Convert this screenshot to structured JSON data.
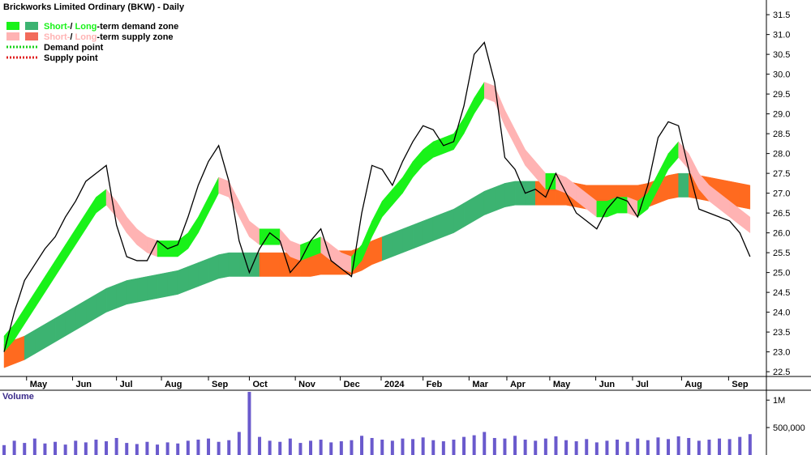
{
  "chart_data": {
    "type": "stock",
    "title": "Brickworks Limited Ordinary (BKW) - Daily",
    "legend": [
      {
        "parts": [
          "Short-",
          "/ ",
          "Long",
          "-term demand zone"
        ],
        "colors": [
          "#19f219",
          "#3cb371"
        ]
      },
      {
        "parts": [
          "Short-",
          "/ ",
          "Long",
          "-term supply zone"
        ],
        "colors": [
          "#ffb3b3",
          "#f26b5b"
        ]
      },
      {
        "parts": [
          "Demand point"
        ],
        "colors": [
          "#19d219"
        ],
        "dotted": true
      },
      {
        "parts": [
          "Supply point"
        ],
        "colors": [
          "#e02020"
        ],
        "dotted": true
      }
    ],
    "price_color": "#000000",
    "long_supply_color": "#ff6a1f",
    "xlim": [
      -0.4,
      74.6
    ],
    "xticks": [
      {
        "value": 2.2,
        "label": "May"
      },
      {
        "value": 6.7,
        "label": "Jun"
      },
      {
        "value": 11,
        "label": "Jul"
      },
      {
        "value": 15.4,
        "label": "Aug"
      },
      {
        "value": 20,
        "label": "Sep"
      },
      {
        "value": 24,
        "label": "Oct"
      },
      {
        "value": 28.5,
        "label": "Nov"
      },
      {
        "value": 32.9,
        "label": "Dec"
      },
      {
        "value": 36.9,
        "label": "2024"
      },
      {
        "value": 41,
        "label": "Feb"
      },
      {
        "value": 45.5,
        "label": "Mar"
      },
      {
        "value": 49.2,
        "label": "Apr"
      },
      {
        "value": 53.4,
        "label": "May"
      },
      {
        "value": 57.9,
        "label": "Jun"
      },
      {
        "value": 61.5,
        "label": "Jul"
      },
      {
        "value": 66.3,
        "label": "Aug"
      },
      {
        "value": 70.9,
        "label": "Sep"
      }
    ],
    "ylim": [
      22.38,
      31.87
    ],
    "yticks": [
      22.5,
      {
        "value": 23,
        "label": "23.0"
      },
      23.5,
      {
        "value": 24,
        "label": "24.0"
      },
      24.5,
      {
        "value": 25,
        "label": "25.0"
      },
      25.5,
      {
        "value": 26,
        "label": "26.0"
      },
      26.5,
      {
        "value": 27,
        "label": "27.0"
      },
      27.5,
      {
        "value": 28,
        "label": "28.0"
      },
      28.5,
      {
        "value": 29,
        "label": "29.0"
      },
      29.5,
      {
        "value": 30,
        "label": "30.0"
      },
      30.5,
      {
        "value": 31,
        "label": "31.0"
      },
      31.5
    ],
    "x": [
      0,
      1,
      2,
      3,
      4,
      5,
      6,
      7,
      8,
      9,
      10,
      11,
      12,
      13,
      14,
      15,
      16,
      17,
      18,
      19,
      20,
      21,
      22,
      23,
      24,
      25,
      26,
      27,
      28,
      29,
      30,
      31,
      32,
      33,
      34,
      35,
      36,
      37,
      38,
      39,
      40,
      41,
      42,
      43,
      44,
      45,
      46,
      47,
      48,
      49,
      50,
      51,
      52,
      53,
      54,
      55,
      56,
      57,
      58,
      59,
      60,
      61,
      62,
      63,
      64,
      65,
      66,
      67,
      68,
      69,
      70,
      71,
      72,
      73
    ],
    "close": [
      23.0,
      24.0,
      24.8,
      25.2,
      25.6,
      25.9,
      26.4,
      26.8,
      27.3,
      27.5,
      27.7,
      26.2,
      25.4,
      25.3,
      25.3,
      25.8,
      25.6,
      25.7,
      26.4,
      27.2,
      27.8,
      28.2,
      27.3,
      25.8,
      25.0,
      25.6,
      26.0,
      25.8,
      25.0,
      25.3,
      25.8,
      26.1,
      25.3,
      25.1,
      24.9,
      26.5,
      27.7,
      27.6,
      27.2,
      27.8,
      28.3,
      28.7,
      28.6,
      28.2,
      28.3,
      29.2,
      30.5,
      30.8,
      29.8,
      27.9,
      27.6,
      27.0,
      27.1,
      26.9,
      27.5,
      27.0,
      26.5,
      26.3,
      26.1,
      26.6,
      26.9,
      26.8,
      26.4,
      27.2,
      28.4,
      28.8,
      28.7,
      27.6,
      26.6,
      26.5,
      26.4,
      26.3,
      26.0,
      25.4
    ],
    "short_term_zone": {
      "upper": [
        23.4,
        23.7,
        24.1,
        24.5,
        24.9,
        25.3,
        25.7,
        26.1,
        26.5,
        26.9,
        27.1,
        26.8,
        26.4,
        26.1,
        25.9,
        25.8,
        25.8,
        25.8,
        26.0,
        26.4,
        26.9,
        27.4,
        27.3,
        26.8,
        26.3,
        26.1,
        26.1,
        26.1,
        25.8,
        25.7,
        25.8,
        25.9,
        25.7,
        25.5,
        25.4,
        25.7,
        26.3,
        26.8,
        27.1,
        27.4,
        27.8,
        28.1,
        28.3,
        28.4,
        28.5,
        28.9,
        29.4,
        29.8,
        29.7,
        29.1,
        28.6,
        28.1,
        27.8,
        27.5,
        27.5,
        27.4,
        27.2,
        27.0,
        26.8,
        26.8,
        26.9,
        26.9,
        26.8,
        27.0,
        27.5,
        28.0,
        28.3,
        28.0,
        27.5,
        27.2,
        27.0,
        26.8,
        26.6,
        26.4
      ],
      "lower": [
        23.0,
        23.3,
        23.7,
        24.1,
        24.5,
        24.9,
        25.3,
        25.7,
        26.1,
        26.5,
        26.7,
        26.4,
        26.0,
        25.7,
        25.5,
        25.4,
        25.4,
        25.4,
        25.6,
        26.0,
        26.5,
        27.0,
        26.9,
        26.4,
        25.9,
        25.7,
        25.7,
        25.7,
        25.4,
        25.3,
        25.4,
        25.5,
        25.3,
        25.1,
        25.0,
        25.3,
        25.9,
        26.4,
        26.7,
        27.0,
        27.4,
        27.7,
        27.9,
        28.0,
        28.1,
        28.5,
        29.0,
        29.4,
        29.3,
        28.7,
        28.2,
        27.7,
        27.4,
        27.1,
        27.1,
        27.0,
        26.8,
        26.6,
        26.4,
        26.4,
        26.5,
        26.5,
        26.4,
        26.6,
        27.1,
        27.6,
        27.9,
        27.6,
        27.1,
        26.8,
        26.6,
        26.4,
        26.2,
        26.0
      ]
    },
    "long_term_zone": {
      "upper": [
        23.2,
        23.3,
        23.4,
        23.55,
        23.7,
        23.85,
        24.0,
        24.15,
        24.3,
        24.45,
        24.6,
        24.7,
        24.8,
        24.85,
        24.9,
        24.95,
        25.0,
        25.05,
        25.15,
        25.25,
        25.35,
        25.45,
        25.5,
        25.5,
        25.5,
        25.5,
        25.5,
        25.5,
        25.5,
        25.5,
        25.5,
        25.55,
        25.55,
        25.55,
        25.55,
        25.65,
        25.8,
        25.9,
        26.0,
        26.1,
        26.2,
        26.3,
        26.4,
        26.5,
        26.6,
        26.75,
        26.9,
        27.05,
        27.15,
        27.25,
        27.3,
        27.3,
        27.3,
        27.3,
        27.3,
        27.3,
        27.25,
        27.2,
        27.2,
        27.2,
        27.2,
        27.2,
        27.2,
        27.25,
        27.35,
        27.45,
        27.5,
        27.5,
        27.45,
        27.4,
        27.35,
        27.3,
        27.25,
        27.2
      ],
      "lower": [
        22.6,
        22.7,
        22.8,
        22.95,
        23.1,
        23.25,
        23.4,
        23.55,
        23.7,
        23.85,
        24.0,
        24.1,
        24.2,
        24.25,
        24.3,
        24.35,
        24.4,
        24.45,
        24.55,
        24.65,
        24.75,
        24.85,
        24.9,
        24.9,
        24.9,
        24.9,
        24.9,
        24.9,
        24.9,
        24.9,
        24.9,
        24.95,
        24.95,
        24.95,
        24.95,
        25.05,
        25.2,
        25.3,
        25.4,
        25.5,
        25.6,
        25.7,
        25.8,
        25.9,
        26.0,
        26.15,
        26.3,
        26.45,
        26.55,
        26.65,
        26.7,
        26.7,
        26.7,
        26.7,
        26.7,
        26.7,
        26.65,
        26.6,
        26.6,
        26.6,
        26.6,
        26.6,
        26.6,
        26.65,
        26.75,
        26.85,
        26.9,
        26.9,
        26.85,
        26.8,
        26.75,
        26.7,
        26.65,
        26.6
      ]
    },
    "volume": {
      "label": "Volume",
      "color": "#6a5acd",
      "ylim": [
        0,
        1180000
      ],
      "yticks": [
        {
          "value": 500000,
          "label": "500,000"
        },
        {
          "value": 1000000,
          "label": "1M"
        }
      ],
      "values": [
        180000,
        260000,
        220000,
        300000,
        210000,
        240000,
        190000,
        260000,
        230000,
        280000,
        250000,
        310000,
        220000,
        200000,
        240000,
        190000,
        230000,
        210000,
        260000,
        280000,
        300000,
        240000,
        270000,
        420000,
        1150000,
        330000,
        260000,
        240000,
        300000,
        220000,
        260000,
        280000,
        230000,
        250000,
        270000,
        350000,
        310000,
        280000,
        260000,
        300000,
        290000,
        320000,
        270000,
        250000,
        280000,
        330000,
        360000,
        420000,
        310000,
        300000,
        350000,
        280000,
        260000,
        300000,
        340000,
        270000,
        250000,
        290000,
        230000,
        260000,
        280000,
        240000,
        300000,
        270000,
        320000,
        290000,
        340000,
        310000,
        260000,
        280000,
        300000,
        290000,
        330000,
        380000
      ]
    }
  }
}
